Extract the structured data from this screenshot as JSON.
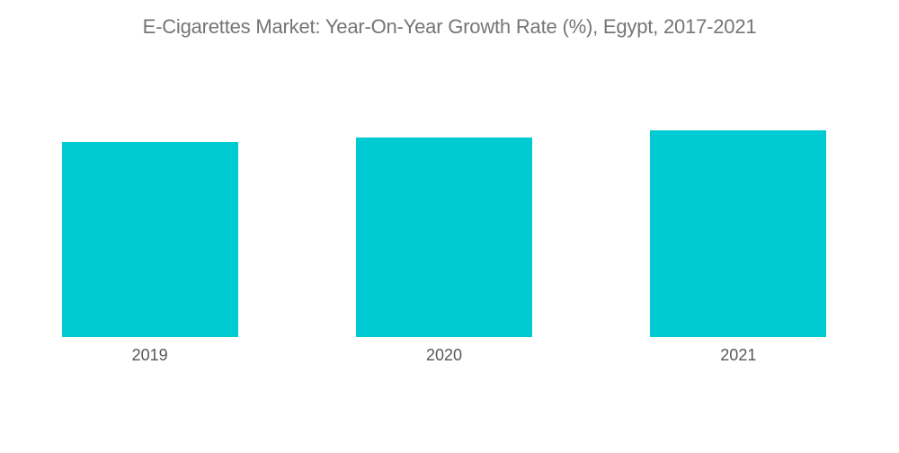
{
  "chart_data": {
    "type": "bar",
    "title": "E-Cigarettes Market: Year-On-Year Growth Rate (%), Egypt, 2017-2021",
    "categories": [
      "2019",
      "2020",
      "2021"
    ],
    "values": [
      94.3,
      96.5,
      100
    ],
    "value_basis": "relative; chart displays no y-axis, gridlines or data labels — values are bar heights as a percent of the tallest bar (2021 = 100)",
    "xlabel": "",
    "ylabel": "",
    "ylim": [
      0,
      100
    ],
    "grid": false,
    "legend": false,
    "bar_color": "#00CBD2",
    "title_color": "#757575",
    "tick_label_color": "#58595B",
    "background": "#FFFFFF"
  }
}
